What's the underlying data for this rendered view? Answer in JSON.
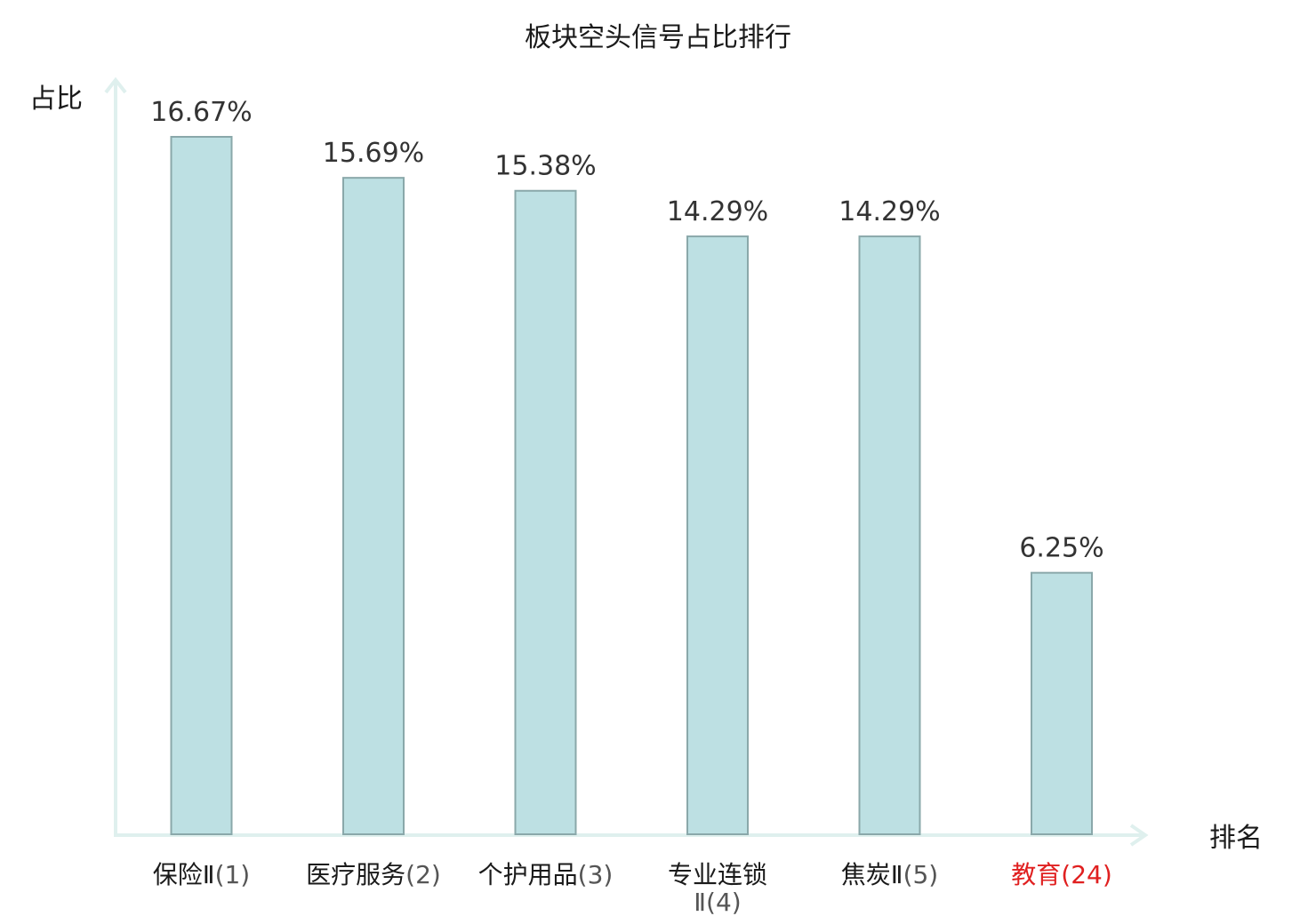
{
  "chart_data": {
    "type": "bar",
    "title": "板块空头信号占比排行",
    "ylabel": "占比",
    "xlabel": "排名",
    "ylim": [
      0,
      17.5
    ],
    "grid": false,
    "categories": [
      {
        "name": "保险Ⅱ",
        "rank": "(1)",
        "highlight": false
      },
      {
        "name": "医疗服务",
        "rank": "(2)",
        "highlight": false
      },
      {
        "name": "个护用品",
        "rank": "(3)",
        "highlight": false
      },
      {
        "name": "专业连锁Ⅱ",
        "rank": "(4)",
        "highlight": false
      },
      {
        "name": "焦炭Ⅱ",
        "rank": "(5)",
        "highlight": false
      },
      {
        "name": "教育",
        "rank": "(24)",
        "highlight": true
      }
    ],
    "values": [
      16.67,
      15.69,
      15.38,
      14.29,
      14.29,
      6.25
    ],
    "value_labels": [
      "16.67%",
      "15.69%",
      "15.38%",
      "14.29%",
      "14.29%",
      "6.25%"
    ],
    "colors": {
      "bar_fill": "#bde0e3",
      "bar_stroke": "#8aa8aa",
      "axis": "#dff0ee",
      "highlight_label": "#e02020",
      "label": "#1a1a1a"
    }
  }
}
